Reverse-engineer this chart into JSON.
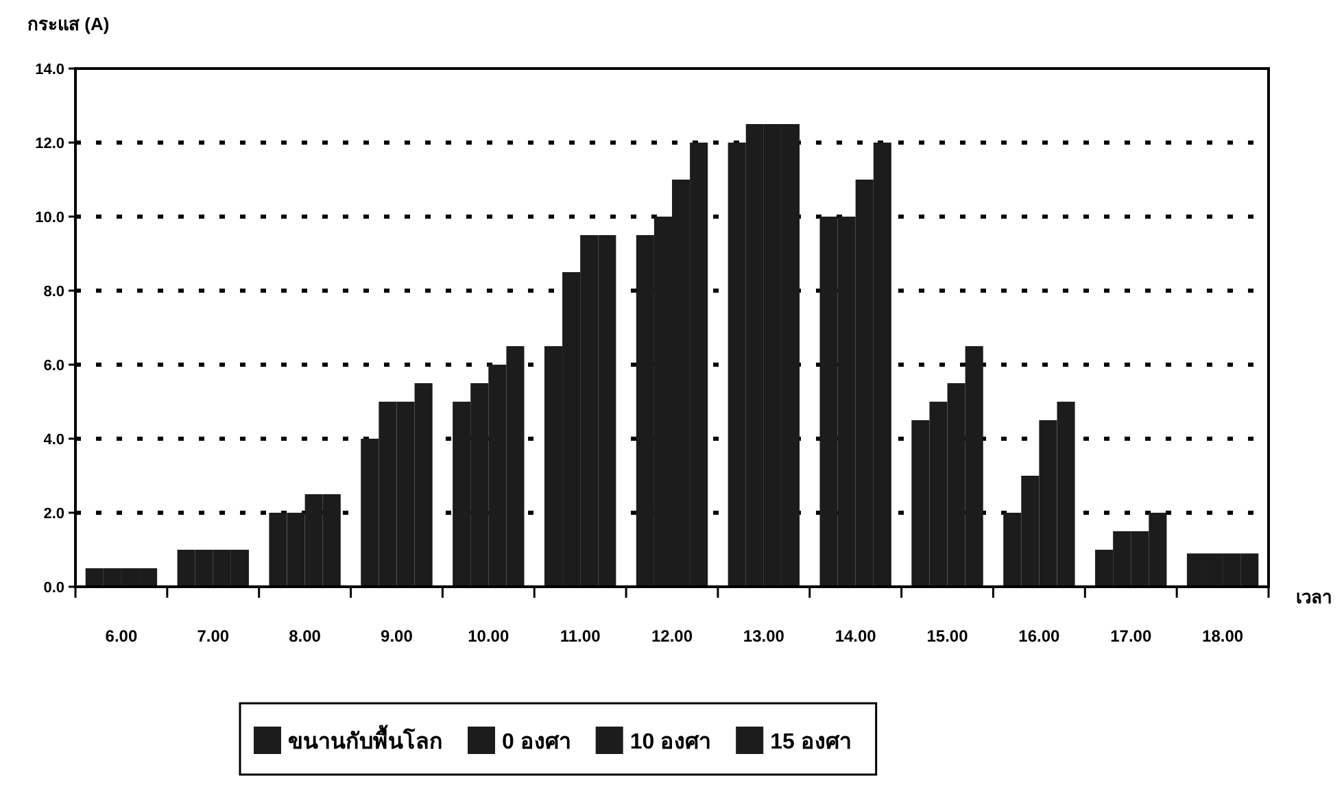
{
  "chart_data": {
    "type": "bar",
    "ylabel": "กระแส (A)",
    "xlabel": "เวลา",
    "categories": [
      "6.00",
      "7.00",
      "8.00",
      "9.00",
      "10.00",
      "11.00",
      "12.00",
      "13.00",
      "14.00",
      "15.00",
      "16.00",
      "17.00",
      "18.00"
    ],
    "series": [
      {
        "name": "ขนานกับพื้นโลก",
        "color": "#1c1c1c",
        "values": [
          0.5,
          1.0,
          2.0,
          4.0,
          5.0,
          6.5,
          9.5,
          12.0,
          10.0,
          4.5,
          2.0,
          1.0,
          0.9
        ]
      },
      {
        "name": "0 องศา",
        "color": "#1c1c1c",
        "values": [
          0.5,
          1.0,
          2.0,
          5.0,
          5.5,
          8.5,
          10.0,
          12.5,
          10.0,
          5.0,
          3.0,
          1.5,
          0.9
        ]
      },
      {
        "name": "10 องศา",
        "color": "#1c1c1c",
        "values": [
          0.5,
          1.0,
          2.5,
          5.0,
          6.0,
          9.5,
          11.0,
          12.5,
          11.0,
          5.5,
          4.5,
          1.5,
          0.9
        ]
      },
      {
        "name": "15 องศา",
        "color": "#1c1c1c",
        "values": [
          0.5,
          1.0,
          2.5,
          5.5,
          6.5,
          9.5,
          12.0,
          12.5,
          12.0,
          6.5,
          5.0,
          2.0,
          0.9
        ]
      }
    ],
    "ylim": [
      0,
      14
    ],
    "yticks": [
      {
        "value": 0,
        "label": "0.0"
      },
      {
        "value": 2,
        "label": "2.0"
      },
      {
        "value": 4,
        "label": "4.0"
      },
      {
        "value": 6,
        "label": "6.0"
      },
      {
        "value": 8,
        "label": "8.0"
      },
      {
        "value": 10,
        "label": "10.0"
      },
      {
        "value": 12,
        "label": "12.0"
      },
      {
        "value": 14,
        "label": "14.0"
      }
    ],
    "grid": "y",
    "legend": "bottom"
  }
}
